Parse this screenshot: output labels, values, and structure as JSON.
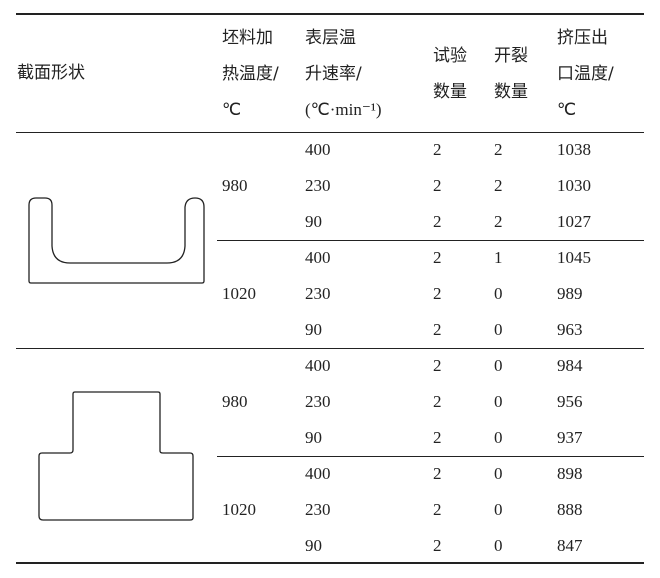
{
  "header": {
    "shape": "截面形状",
    "billet_temp": [
      "坯料加",
      "热温度/",
      "℃"
    ],
    "heating_rate": [
      "表层温",
      "升速率/",
      "(℃·min⁻¹)"
    ],
    "test_count": [
      "试验",
      "数量"
    ],
    "crack_count": [
      "开裂",
      "数量"
    ],
    "exit_temp": [
      "挤压出",
      "口温度/",
      "℃"
    ]
  },
  "groups": [
    {
      "shape": "U-channel-section",
      "temps": [
        {
          "billet_temp": "980",
          "rows": [
            [
              "400",
              "2",
              "2",
              "1038"
            ],
            [
              "230",
              "2",
              "2",
              "1030"
            ],
            [
              "90",
              "2",
              "2",
              "1027"
            ]
          ]
        },
        {
          "billet_temp": "1020",
          "rows": [
            [
              "400",
              "2",
              "1",
              "1045"
            ],
            [
              "230",
              "2",
              "0",
              "989"
            ],
            [
              "90",
              "2",
              "0",
              "963"
            ]
          ]
        }
      ]
    },
    {
      "shape": "T-section",
      "temps": [
        {
          "billet_temp": "980",
          "rows": [
            [
              "400",
              "2",
              "0",
              "984"
            ],
            [
              "230",
              "2",
              "0",
              "956"
            ],
            [
              "90",
              "2",
              "0",
              "937"
            ]
          ]
        },
        {
          "billet_temp": "1020",
          "rows": [
            [
              "400",
              "2",
              "0",
              "898"
            ],
            [
              "230",
              "2",
              "0",
              "888"
            ],
            [
              "90",
              "2",
              "0",
              "847"
            ]
          ]
        }
      ]
    }
  ]
}
